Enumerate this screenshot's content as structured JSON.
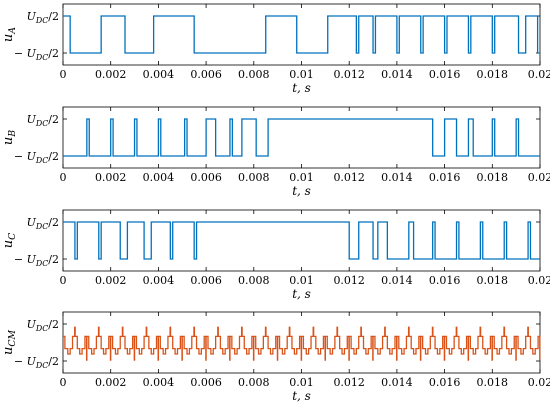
{
  "chart_data": [
    {
      "type": "line",
      "ylabel": "u_A",
      "xlabel": "t, s",
      "xlim": [
        0,
        0.02
      ],
      "ylim": [
        "-U_DC/2",
        "U_DC/2"
      ],
      "x_ticks": [
        "0",
        "0.002",
        "0.004",
        "0.006",
        "0.008",
        "0.01",
        "0.012",
        "0.014",
        "0.016",
        "0.018",
        "0.02"
      ],
      "y_ticks": [
        "U_DC/2",
        "-U_DC/2"
      ],
      "series": [
        {
          "color": "#0072BD",
          "x": [
            0,
            0.0003,
            0.0003,
            0.0016,
            0.0016,
            0.0026,
            0.0026,
            0.0038,
            0.0038,
            0.0055,
            0.0055,
            0.0085,
            0.0085,
            0.0098,
            0.0098,
            0.0111,
            0.0111,
            0.0123,
            0.0123,
            0.0124,
            0.0124,
            0.013,
            0.013,
            0.0131,
            0.0131,
            0.014,
            0.014,
            0.0141,
            0.0141,
            0.015,
            0.015,
            0.0151,
            0.0151,
            0.016,
            0.016,
            0.0161,
            0.0161,
            0.017,
            0.017,
            0.0171,
            0.0171,
            0.018,
            0.018,
            0.0181,
            0.0181,
            0.0191,
            0.0191,
            0.0194,
            0.0194,
            0.0199,
            0.0199,
            0.02
          ],
          "values": [
            1,
            1,
            -1,
            -1,
            1,
            1,
            -1,
            -1,
            1,
            1,
            -1,
            -1,
            1,
            1,
            -1,
            -1,
            1,
            1,
            -1,
            -1,
            1,
            1,
            -1,
            -1,
            1,
            1,
            -1,
            -1,
            1,
            1,
            -1,
            -1,
            1,
            1,
            -1,
            -1,
            1,
            1,
            -1,
            -1,
            1,
            1,
            -1,
            -1,
            1,
            1,
            -1,
            -1,
            1,
            1,
            -1,
            -1
          ]
        }
      ]
    },
    {
      "type": "line",
      "ylabel": "u_B",
      "xlabel": "t, s",
      "xlim": [
        0,
        0.02
      ],
      "ylim": [
        "-U_DC/2",
        "U_DC/2"
      ],
      "x_ticks": [
        "0",
        "0.002",
        "0.004",
        "0.006",
        "0.008",
        "0.01",
        "0.012",
        "0.014",
        "0.016",
        "0.018",
        "0.02"
      ],
      "y_ticks": [
        "U_DC/2",
        "-U_DC/2"
      ],
      "series": [
        {
          "color": "#0072BD",
          "x": [
            0,
            0.001,
            0.001,
            0.0011,
            0.0011,
            0.002,
            0.002,
            0.0021,
            0.0021,
            0.003,
            0.003,
            0.0031,
            0.0031,
            0.004,
            0.004,
            0.0041,
            0.0041,
            0.0051,
            0.0051,
            0.0052,
            0.0052,
            0.006,
            0.006,
            0.0064,
            0.0064,
            0.007,
            0.007,
            0.0071,
            0.0071,
            0.0075,
            0.0075,
            0.0081,
            0.0081,
            0.0086,
            0.0086,
            0.0155,
            0.0155,
            0.016,
            0.016,
            0.0165,
            0.0165,
            0.017,
            0.017,
            0.0172,
            0.0172,
            0.018,
            0.018,
            0.0181,
            0.0181,
            0.019,
            0.019,
            0.0191,
            0.0191,
            0.02
          ],
          "values": [
            -1,
            -1,
            1,
            1,
            -1,
            -1,
            1,
            1,
            -1,
            -1,
            1,
            1,
            -1,
            -1,
            1,
            1,
            -1,
            -1,
            1,
            1,
            -1,
            -1,
            1,
            1,
            -1,
            -1,
            1,
            1,
            -1,
            -1,
            1,
            1,
            -1,
            -1,
            1,
            1,
            -1,
            -1,
            1,
            1,
            -1,
            -1,
            1,
            1,
            -1,
            -1,
            1,
            1,
            -1,
            -1,
            1,
            1,
            -1,
            -1
          ]
        }
      ]
    },
    {
      "type": "line",
      "ylabel": "u_C",
      "xlabel": "t, s",
      "xlim": [
        0,
        0.02
      ],
      "ylim": [
        "-U_DC/2",
        "U_DC/2"
      ],
      "x_ticks": [
        "0",
        "0.002",
        "0.004",
        "0.006",
        "0.008",
        "0.01",
        "0.012",
        "0.014",
        "0.016",
        "0.018",
        "0.02"
      ],
      "y_ticks": [
        "U_DC/2",
        "-U_DC/2"
      ],
      "series": [
        {
          "color": "#0072BD",
          "x": [
            0,
            0.0005,
            0.0005,
            0.0006,
            0.0006,
            0.0015,
            0.0015,
            0.0016,
            0.0016,
            0.0024,
            0.0024,
            0.0027,
            0.0027,
            0.0034,
            0.0034,
            0.0037,
            0.0037,
            0.0045,
            0.0045,
            0.0046,
            0.0046,
            0.0055,
            0.0055,
            0.0056,
            0.0056,
            0.012,
            0.012,
            0.0124,
            0.0124,
            0.013,
            0.013,
            0.0132,
            0.0132,
            0.0136,
            0.0136,
            0.0145,
            0.0145,
            0.0147,
            0.0147,
            0.0155,
            0.0155,
            0.0156,
            0.0156,
            0.0165,
            0.0165,
            0.0166,
            0.0166,
            0.0175,
            0.0175,
            0.0176,
            0.0176,
            0.0185,
            0.0185,
            0.0186,
            0.0186,
            0.0195,
            0.0195,
            0.0196,
            0.0196,
            0.02
          ],
          "values": [
            1,
            1,
            -1,
            -1,
            1,
            1,
            -1,
            -1,
            1,
            1,
            -1,
            -1,
            1,
            1,
            -1,
            -1,
            1,
            1,
            -1,
            -1,
            1,
            1,
            -1,
            -1,
            1,
            1,
            -1,
            -1,
            1,
            1,
            -1,
            -1,
            1,
            1,
            -1,
            -1,
            1,
            1,
            -1,
            -1,
            1,
            1,
            -1,
            -1,
            1,
            1,
            -1,
            -1,
            1,
            1,
            -1,
            -1,
            1,
            1,
            -1,
            -1,
            1,
            1,
            -1,
            -1
          ]
        }
      ]
    },
    {
      "type": "line",
      "ylabel": "u_CM",
      "xlabel": "t, s",
      "xlim": [
        0,
        0.02
      ],
      "ylim": [
        "-U_DC/2",
        "U_DC/2"
      ],
      "x_ticks": [
        "0",
        "0.002",
        "0.004",
        "0.006",
        "0.008",
        "0.01",
        "0.012",
        "0.014",
        "0.016",
        "0.018",
        "0.02"
      ],
      "y_ticks": [
        "U_DC/2",
        "-U_DC/2"
      ],
      "period": 0.001,
      "series": [
        {
          "color": "#D95319",
          "x_in_period": [
            0,
            8e-05,
            8e-05,
            0.0002,
            0.0002,
            0.0003,
            0.0003,
            0.0004,
            0.0004,
            0.00049,
            0.00049,
            0.00051,
            0.00051,
            0.0006,
            0.0006,
            0.0007,
            0.0007,
            0.0008,
            0.0008,
            0.00092,
            0.00092,
            0.00099,
            0.00099,
            0.001
          ],
          "values": [
            0.33,
            0.33,
            -0.33,
            -0.33,
            -0.62,
            -0.62,
            -0.33,
            -0.33,
            0.33,
            0.33,
            0.82,
            0.82,
            0.33,
            0.33,
            -0.33,
            -0.33,
            -0.62,
            -0.62,
            -0.33,
            -0.33,
            0.33,
            0.33,
            -0.95,
            -0.95
          ]
        }
      ]
    }
  ]
}
